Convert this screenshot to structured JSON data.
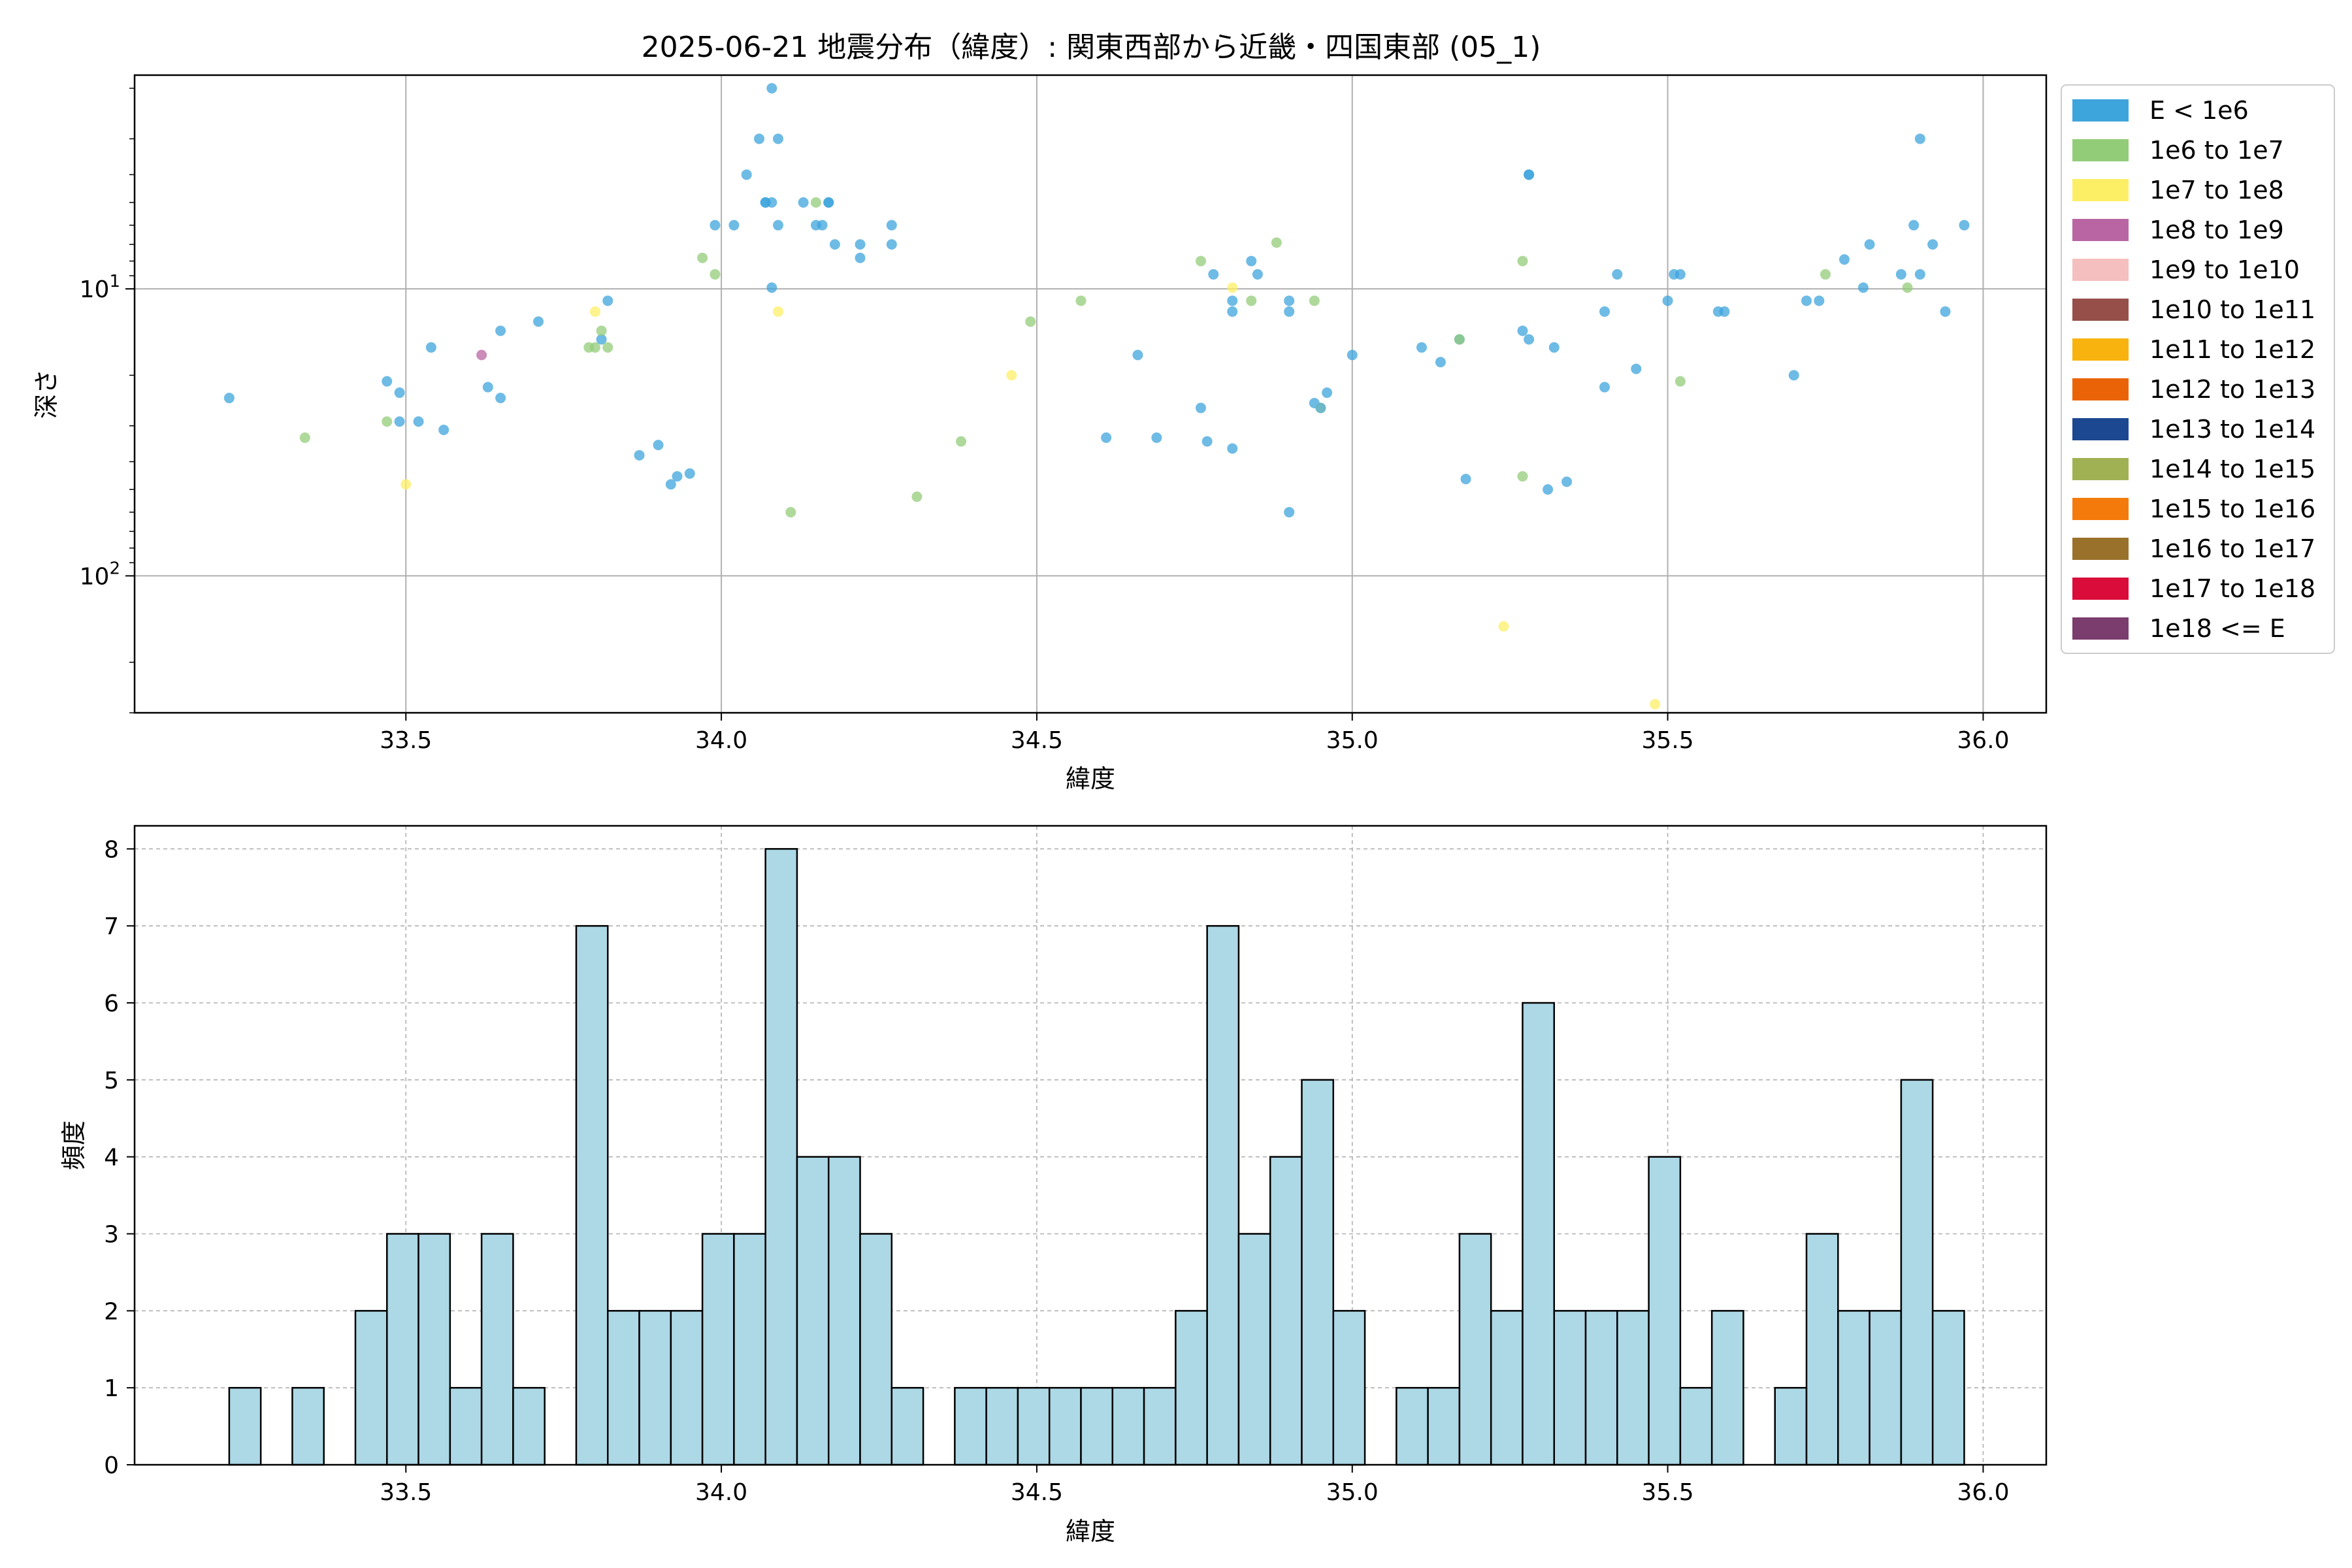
{
  "chart_data": [
    {
      "type": "scatter",
      "title": "2025-06-21 地震分布（緯度）: 関東西部から近畿・四国東部 (05_1)",
      "xlabel": "緯度",
      "ylabel": "深さ",
      "xlim": [
        33.07,
        36.1
      ],
      "ylim_log": [
        300,
        1.8
      ],
      "y_scale": "log",
      "y_inverted": true,
      "grid": true,
      "x_ticks": [
        33.5,
        34.0,
        34.5,
        35.0,
        35.5,
        36.0
      ],
      "x_tick_labels": [
        "33.5",
        "34.0",
        "34.5",
        "35.0",
        "35.5",
        "36.0"
      ],
      "y_ticks": [
        {
          "value": 10,
          "base": "10",
          "exp": "1"
        },
        {
          "value": 100,
          "base": "10",
          "exp": "2"
        }
      ],
      "legend": {
        "placement": "outside-right",
        "entries": [
          {
            "label": "E < 1e6",
            "color": "#3ea4dc"
          },
          {
            "label": "1e6 to 1e7",
            "color": "#93cc79"
          },
          {
            "label": "1e7 to 1e8",
            "color": "#fdef65"
          },
          {
            "label": "1e8 to 1e9",
            "color": "#b965a3"
          },
          {
            "label": "1e9 to 1e10",
            "color": "#f5bfbf"
          },
          {
            "label": "1e10 to 1e11",
            "color": "#974f4a"
          },
          {
            "label": "1e11 to 1e12",
            "color": "#f9b30e"
          },
          {
            "label": "1e12 to 1e13",
            "color": "#eb6307"
          },
          {
            "label": "1e13 to 1e14",
            "color": "#1c4791"
          },
          {
            "label": "1e14 to 1e15",
            "color": "#a0b154"
          },
          {
            "label": "1e15 to 1e16",
            "color": "#f47b0b"
          },
          {
            "label": "1e16 to 1e17",
            "color": "#9a712b"
          },
          {
            "label": "1e17 to 1e18",
            "color": "#da0c3a"
          },
          {
            "label": "1e18 <= E",
            "color": "#7b3c6e"
          }
        ]
      },
      "points": [
        {
          "x": 33.22,
          "y": 24,
          "c": 0
        },
        {
          "x": 33.34,
          "y": 33,
          "c": 1
        },
        {
          "x": 33.47,
          "y": 21,
          "c": 0
        },
        {
          "x": 33.47,
          "y": 29,
          "c": 1
        },
        {
          "x": 33.49,
          "y": 29,
          "c": 0
        },
        {
          "x": 33.49,
          "y": 23,
          "c": 0
        },
        {
          "x": 33.5,
          "y": 48,
          "c": 2
        },
        {
          "x": 33.52,
          "y": 29,
          "c": 0
        },
        {
          "x": 33.54,
          "y": 16,
          "c": 0
        },
        {
          "x": 33.56,
          "y": 31,
          "c": 0
        },
        {
          "x": 33.62,
          "y": 17,
          "c": 3
        },
        {
          "x": 33.63,
          "y": 22,
          "c": 0
        },
        {
          "x": 33.65,
          "y": 24,
          "c": 0
        },
        {
          "x": 33.65,
          "y": 14,
          "c": 0
        },
        {
          "x": 33.71,
          "y": 13,
          "c": 0
        },
        {
          "x": 33.79,
          "y": 16,
          "c": 1
        },
        {
          "x": 33.8,
          "y": 16,
          "c": 1
        },
        {
          "x": 33.8,
          "y": 12,
          "c": 2
        },
        {
          "x": 33.81,
          "y": 15,
          "c": 0
        },
        {
          "x": 33.81,
          "y": 14,
          "c": 1
        },
        {
          "x": 33.82,
          "y": 11,
          "c": 0
        },
        {
          "x": 33.82,
          "y": 16,
          "c": 1
        },
        {
          "x": 33.87,
          "y": 38,
          "c": 0
        },
        {
          "x": 33.9,
          "y": 35,
          "c": 0
        },
        {
          "x": 33.92,
          "y": 48,
          "c": 0
        },
        {
          "x": 33.93,
          "y": 45,
          "c": 0
        },
        {
          "x": 33.95,
          "y": 44,
          "c": 0
        },
        {
          "x": 33.97,
          "y": 7.8,
          "c": 1
        },
        {
          "x": 33.99,
          "y": 6.0,
          "c": 0
        },
        {
          "x": 33.99,
          "y": 8.9,
          "c": 1
        },
        {
          "x": 34.02,
          "y": 6.0,
          "c": 0
        },
        {
          "x": 34.04,
          "y": 4.0,
          "c": 0
        },
        {
          "x": 34.06,
          "y": 3.0,
          "c": 0
        },
        {
          "x": 34.07,
          "y": 5.0,
          "c": 0
        },
        {
          "x": 34.07,
          "y": 5.0,
          "c": 0
        },
        {
          "x": 34.08,
          "y": 5.0,
          "c": 0
        },
        {
          "x": 34.08,
          "y": 2.0,
          "c": 0
        },
        {
          "x": 34.08,
          "y": 9.9,
          "c": 0
        },
        {
          "x": 34.09,
          "y": 3.0,
          "c": 0
        },
        {
          "x": 34.09,
          "y": 6.0,
          "c": 0
        },
        {
          "x": 34.09,
          "y": 12,
          "c": 2
        },
        {
          "x": 34.11,
          "y": 60,
          "c": 1
        },
        {
          "x": 34.13,
          "y": 5.0,
          "c": 0
        },
        {
          "x": 34.15,
          "y": 5.0,
          "c": 1
        },
        {
          "x": 34.15,
          "y": 6.0,
          "c": 0
        },
        {
          "x": 34.16,
          "y": 6.0,
          "c": 0
        },
        {
          "x": 34.17,
          "y": 5.0,
          "c": 0
        },
        {
          "x": 34.17,
          "y": 5.0,
          "c": 0
        },
        {
          "x": 34.18,
          "y": 7.0,
          "c": 0
        },
        {
          "x": 34.22,
          "y": 7.0,
          "c": 0
        },
        {
          "x": 34.22,
          "y": 7.8,
          "c": 0
        },
        {
          "x": 34.27,
          "y": 6.0,
          "c": 0
        },
        {
          "x": 34.27,
          "y": 7.0,
          "c": 0
        },
        {
          "x": 34.31,
          "y": 53,
          "c": 1
        },
        {
          "x": 34.38,
          "y": 34,
          "c": 1
        },
        {
          "x": 34.46,
          "y": 20,
          "c": 2
        },
        {
          "x": 34.49,
          "y": 13,
          "c": 1
        },
        {
          "x": 34.57,
          "y": 11,
          "c": 1
        },
        {
          "x": 34.61,
          "y": 33,
          "c": 0
        },
        {
          "x": 34.66,
          "y": 17,
          "c": 0
        },
        {
          "x": 34.69,
          "y": 33,
          "c": 0
        },
        {
          "x": 34.76,
          "y": 8.0,
          "c": 1
        },
        {
          "x": 34.76,
          "y": 26,
          "c": 0
        },
        {
          "x": 34.77,
          "y": 34,
          "c": 0
        },
        {
          "x": 34.78,
          "y": 8.9,
          "c": 0
        },
        {
          "x": 34.81,
          "y": 9.9,
          "c": 2
        },
        {
          "x": 34.81,
          "y": 11,
          "c": 0
        },
        {
          "x": 34.81,
          "y": 12,
          "c": 0
        },
        {
          "x": 34.81,
          "y": 36,
          "c": 0
        },
        {
          "x": 34.84,
          "y": 8.0,
          "c": 0
        },
        {
          "x": 34.84,
          "y": 11,
          "c": 1
        },
        {
          "x": 34.85,
          "y": 8.9,
          "c": 0
        },
        {
          "x": 34.88,
          "y": 6.9,
          "c": 1
        },
        {
          "x": 34.9,
          "y": 11,
          "c": 0
        },
        {
          "x": 34.9,
          "y": 12,
          "c": 0
        },
        {
          "x": 34.9,
          "y": 60,
          "c": 0
        },
        {
          "x": 34.94,
          "y": 11,
          "c": 1
        },
        {
          "x": 34.94,
          "y": 25,
          "c": 0
        },
        {
          "x": 34.95,
          "y": 26,
          "c": 2
        },
        {
          "x": 34.95,
          "y": 26,
          "c": 0
        },
        {
          "x": 34.96,
          "y": 23,
          "c": 0
        },
        {
          "x": 35.0,
          "y": 17,
          "c": 0
        },
        {
          "x": 35.11,
          "y": 16,
          "c": 0
        },
        {
          "x": 35.14,
          "y": 18,
          "c": 0
        },
        {
          "x": 35.17,
          "y": 15,
          "c": 0
        },
        {
          "x": 35.17,
          "y": 15,
          "c": 1
        },
        {
          "x": 35.18,
          "y": 46,
          "c": 0
        },
        {
          "x": 35.24,
          "y": 150,
          "c": 2
        },
        {
          "x": 35.27,
          "y": 45,
          "c": 1
        },
        {
          "x": 35.27,
          "y": 8.0,
          "c": 1
        },
        {
          "x": 35.27,
          "y": 14,
          "c": 0
        },
        {
          "x": 35.28,
          "y": 4.0,
          "c": 0
        },
        {
          "x": 35.28,
          "y": 4.0,
          "c": 0
        },
        {
          "x": 35.28,
          "y": 15,
          "c": 0
        },
        {
          "x": 35.31,
          "y": 50,
          "c": 0
        },
        {
          "x": 35.32,
          "y": 16,
          "c": 0
        },
        {
          "x": 35.34,
          "y": 47,
          "c": 0
        },
        {
          "x": 35.4,
          "y": 22,
          "c": 0
        },
        {
          "x": 35.4,
          "y": 12,
          "c": 0
        },
        {
          "x": 35.42,
          "y": 8.9,
          "c": 0
        },
        {
          "x": 35.45,
          "y": 19,
          "c": 0
        },
        {
          "x": 35.48,
          "y": 280,
          "c": 2
        },
        {
          "x": 35.5,
          "y": 11,
          "c": 0
        },
        {
          "x": 35.51,
          "y": 8.9,
          "c": 0
        },
        {
          "x": 35.52,
          "y": 21,
          "c": 1
        },
        {
          "x": 35.52,
          "y": 8.9,
          "c": 0
        },
        {
          "x": 35.58,
          "y": 12,
          "c": 0
        },
        {
          "x": 35.59,
          "y": 12,
          "c": 0
        },
        {
          "x": 35.7,
          "y": 20,
          "c": 0
        },
        {
          "x": 35.72,
          "y": 11,
          "c": 0
        },
        {
          "x": 35.74,
          "y": 11,
          "c": 0
        },
        {
          "x": 35.75,
          "y": 8.9,
          "c": 1
        },
        {
          "x": 35.78,
          "y": 7.9,
          "c": 0
        },
        {
          "x": 35.81,
          "y": 9.9,
          "c": 0
        },
        {
          "x": 35.82,
          "y": 7.0,
          "c": 0
        },
        {
          "x": 35.87,
          "y": 8.9,
          "c": 0
        },
        {
          "x": 35.88,
          "y": 9.9,
          "c": 1
        },
        {
          "x": 35.89,
          "y": 6.0,
          "c": 0
        },
        {
          "x": 35.9,
          "y": 3.0,
          "c": 0
        },
        {
          "x": 35.9,
          "y": 8.9,
          "c": 0
        },
        {
          "x": 35.92,
          "y": 7.0,
          "c": 0
        },
        {
          "x": 35.94,
          "y": 12,
          "c": 0
        },
        {
          "x": 35.97,
          "y": 6.0,
          "c": 0
        }
      ]
    },
    {
      "type": "bar",
      "title": "",
      "xlabel": "緯度",
      "ylabel": "頻度",
      "xlim": [
        33.07,
        36.1
      ],
      "ylim": [
        0,
        8.3
      ],
      "grid": true,
      "bin_width": 0.05,
      "bar_color": "#add8e6",
      "x_ticks": [
        33.5,
        34.0,
        34.5,
        35.0,
        35.5,
        36.0
      ],
      "x_tick_labels": [
        "33.5",
        "34.0",
        "34.5",
        "35.0",
        "35.5",
        "36.0"
      ],
      "y_ticks": [
        0,
        1,
        2,
        3,
        4,
        5,
        6,
        7,
        8
      ],
      "bins": [
        {
          "x0": 33.22,
          "value": 1
        },
        {
          "x0": 33.32,
          "value": 1
        },
        {
          "x0": 33.42,
          "value": 2
        },
        {
          "x0": 33.47,
          "value": 3
        },
        {
          "x0": 33.52,
          "value": 3
        },
        {
          "x0": 33.57,
          "value": 1
        },
        {
          "x0": 33.62,
          "value": 3
        },
        {
          "x0": 33.67,
          "value": 1
        },
        {
          "x0": 33.77,
          "value": 7
        },
        {
          "x0": 33.82,
          "value": 2
        },
        {
          "x0": 33.87,
          "value": 2
        },
        {
          "x0": 33.92,
          "value": 2
        },
        {
          "x0": 33.97,
          "value": 3
        },
        {
          "x0": 34.02,
          "value": 3
        },
        {
          "x0": 34.07,
          "value": 8
        },
        {
          "x0": 34.12,
          "value": 4
        },
        {
          "x0": 34.17,
          "value": 4
        },
        {
          "x0": 34.22,
          "value": 3
        },
        {
          "x0": 34.27,
          "value": 1
        },
        {
          "x0": 34.37,
          "value": 1
        },
        {
          "x0": 34.42,
          "value": 1
        },
        {
          "x0": 34.47,
          "value": 1
        },
        {
          "x0": 34.52,
          "value": 1
        },
        {
          "x0": 34.57,
          "value": 1
        },
        {
          "x0": 34.62,
          "value": 1
        },
        {
          "x0": 34.67,
          "value": 1
        },
        {
          "x0": 34.72,
          "value": 2
        },
        {
          "x0": 34.77,
          "value": 7
        },
        {
          "x0": 34.82,
          "value": 3
        },
        {
          "x0": 34.87,
          "value": 4
        },
        {
          "x0": 34.92,
          "value": 5
        },
        {
          "x0": 34.97,
          "value": 2
        },
        {
          "x0": 35.07,
          "value": 1
        },
        {
          "x0": 35.12,
          "value": 1
        },
        {
          "x0": 35.17,
          "value": 3
        },
        {
          "x0": 35.22,
          "value": 2
        },
        {
          "x0": 35.27,
          "value": 6
        },
        {
          "x0": 35.32,
          "value": 2
        },
        {
          "x0": 35.37,
          "value": 2
        },
        {
          "x0": 35.42,
          "value": 2
        },
        {
          "x0": 35.47,
          "value": 4
        },
        {
          "x0": 35.52,
          "value": 1
        },
        {
          "x0": 35.57,
          "value": 2
        },
        {
          "x0": 35.67,
          "value": 1
        },
        {
          "x0": 35.72,
          "value": 3
        },
        {
          "x0": 35.77,
          "value": 2
        },
        {
          "x0": 35.82,
          "value": 2
        },
        {
          "x0": 35.87,
          "value": 5
        },
        {
          "x0": 35.92,
          "value": 2
        }
      ]
    }
  ]
}
